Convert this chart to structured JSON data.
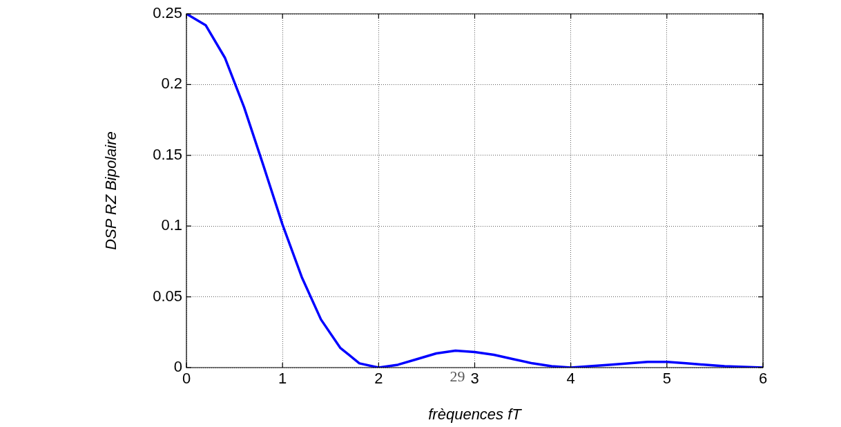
{
  "chart_data": {
    "type": "line",
    "xlabel": "frèquences fT",
    "ylabel": "DSP RZ Bipolaire",
    "annotations": [
      "29"
    ],
    "x": [
      0,
      0.2,
      0.4,
      0.6,
      0.8,
      1.0,
      1.2,
      1.4,
      1.6,
      1.8,
      2.0,
      2.2,
      2.4,
      2.6,
      2.8,
      3.0,
      3.2,
      3.4,
      3.6,
      3.8,
      4.0,
      4.4,
      4.8,
      5.0,
      5.2,
      5.6,
      6.0
    ],
    "series": [
      {
        "color": "#0000ff",
        "values": [
          0.25,
          0.242,
          0.219,
          0.184,
          0.143,
          0.101,
          0.064,
          0.034,
          0.014,
          0.003,
          0,
          0.002,
          0.006,
          0.01,
          0.012,
          0.011,
          0.009,
          0.006,
          0.003,
          0.001,
          0,
          0.002,
          0.004,
          0.004,
          0.003,
          0.001,
          0
        ]
      }
    ],
    "xlim": [
      0,
      6
    ],
    "xticks": [
      0,
      1,
      2,
      3,
      4,
      5,
      6
    ],
    "ylim": [
      0,
      0.25
    ],
    "yticks": [
      0,
      0.05,
      0.1,
      0.15,
      0.2,
      0.25
    ],
    "grid": true,
    "marker": "none",
    "line_style": "solid"
  }
}
